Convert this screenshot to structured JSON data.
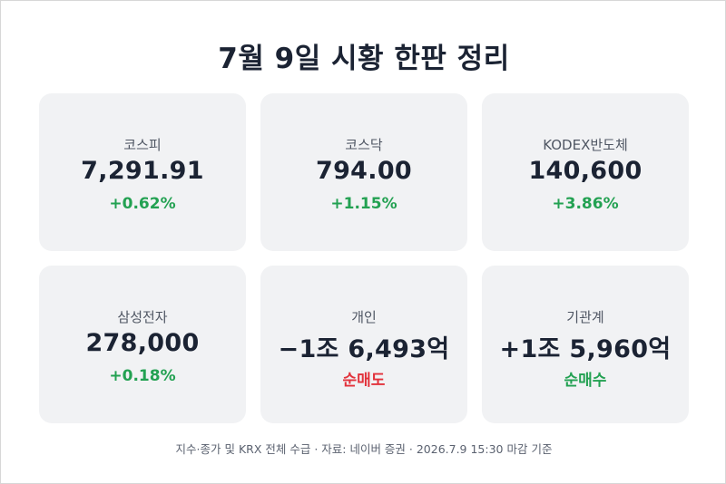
{
  "title": "7월 9일 시황 한판 정리",
  "colors": {
    "positive": "#23a152",
    "negative": "#e2323b",
    "card_background": "#f1f2f4",
    "text_primary": "#1b2333"
  },
  "cards": [
    {
      "label": "코스피",
      "value": "7,291.91",
      "change": "+0.62%",
      "tone": "positive"
    },
    {
      "label": "코스닥",
      "value": "794.00",
      "change": "+1.15%",
      "tone": "positive"
    },
    {
      "label": "KODEX반도체",
      "value": "140,600",
      "change": "+3.86%",
      "tone": "positive"
    },
    {
      "label": "삼성전자",
      "value": "278,000",
      "change": "+0.18%",
      "tone": "positive"
    },
    {
      "label": "개인",
      "value": "−1조 6,493억",
      "change": "순매도",
      "tone": "negative"
    },
    {
      "label": "기관계",
      "value": "+1조 5,960억",
      "change": "순매수",
      "tone": "positive"
    }
  ],
  "footer": "지수·종가 및 KRX 전체 수급 · 자료: 네이버 증권 · 2026.7.9 15:30 마감 기준"
}
